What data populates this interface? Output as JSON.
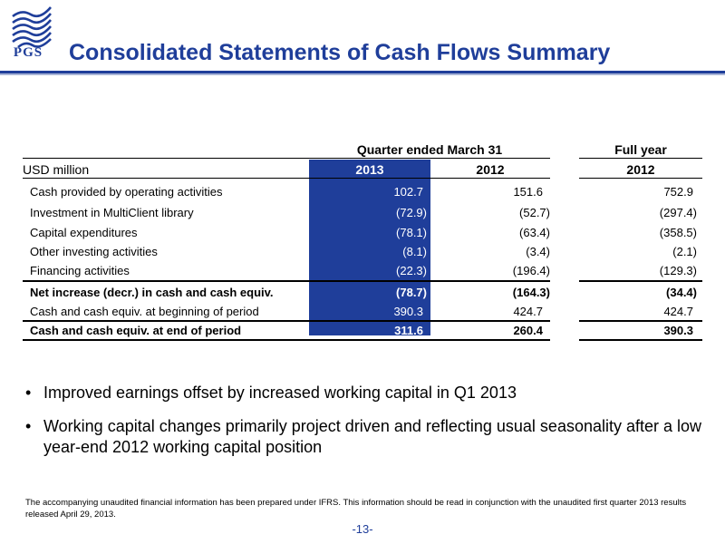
{
  "header": {
    "logo_text": "PGS",
    "title": "Consolidated Statements of Cash Flows Summary"
  },
  "table": {
    "group_quarter": "Quarter ended March 31",
    "group_full_year": "Full year",
    "unit_label": "USD million",
    "col_2013": "2013",
    "col_2012": "2012",
    "col_fy2012": "2012",
    "rows": [
      {
        "label": "Cash provided by operating activities",
        "q2013": "102.7",
        "q2012": "151.6",
        "fy2012": "752.9",
        "bold": false
      },
      {
        "label": "Investment in MultiClient library",
        "q2013": "(72.9)",
        "q2012": "(52.7)",
        "fy2012": "(297.4)",
        "bold": false
      },
      {
        "label": "Capital expenditures",
        "q2013": "(78.1)",
        "q2012": "(63.4)",
        "fy2012": "(358.5)",
        "bold": false
      },
      {
        "label": "Other investing activities",
        "q2013": "(8.1)",
        "q2012": "(3.4)",
        "fy2012": "(2.1)",
        "bold": false
      },
      {
        "label": "Financing activities",
        "q2013": "(22.3)",
        "q2012": "(196.4)",
        "fy2012": "(129.3)",
        "bold": false
      },
      {
        "label": "Net increase (decr.) in cash and cash equiv.",
        "q2013": "(78.7)",
        "q2012": "(164.3)",
        "fy2012": "(34.4)",
        "bold": true
      },
      {
        "label": "Cash and cash equiv. at beginning of period",
        "q2013": "390.3",
        "q2012": "424.7",
        "fy2012": "424.7",
        "bold": false
      },
      {
        "label": "Cash and cash equiv. at end of period",
        "q2013": "311.6",
        "q2012": "260.4",
        "fy2012": "390.3",
        "bold": true
      }
    ]
  },
  "bullets": [
    "Improved earnings offset by increased working capital in Q1 2013",
    "Working capital changes primarily project driven and reflecting usual seasonality after a low year-end 2012 working capital position"
  ],
  "bullet_marker": "•",
  "footnote": "The accompanying unaudited financial information has been prepared under IFRS. This information should be read in conjunction with the unaudited first quarter 2013 results released April 29, 2013.",
  "page_number": "-13-",
  "colors": {
    "brand_blue": "#1f3e9a"
  }
}
